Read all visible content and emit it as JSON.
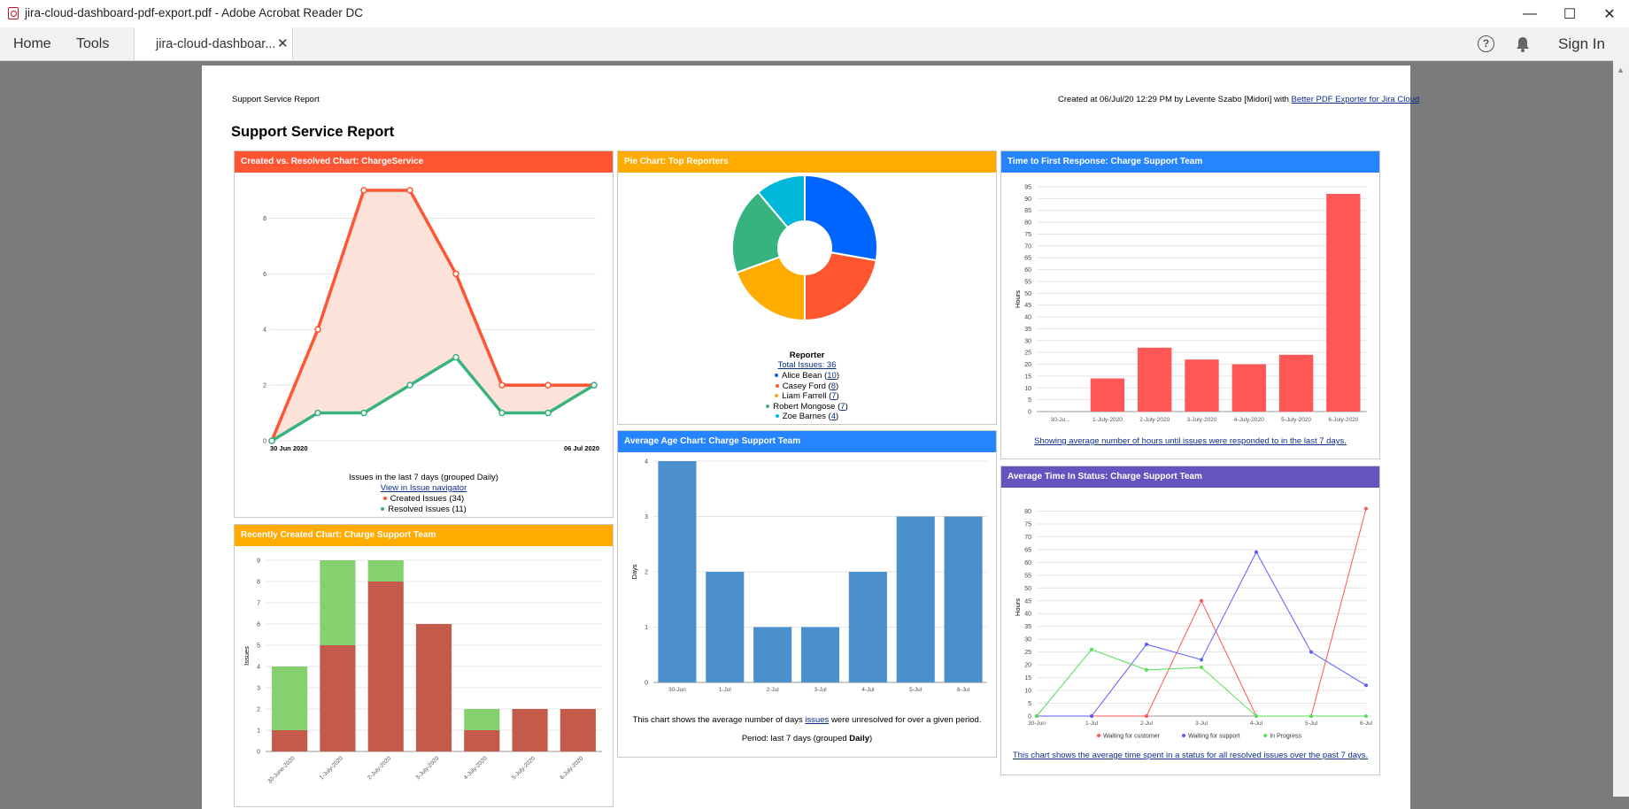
{
  "window": {
    "title": "jira-cloud-dashboard-pdf-export.pdf - Adobe Acrobat Reader DC",
    "minimize": "—",
    "maximize": "☐",
    "close": "✕"
  },
  "menubar": {
    "home": "Home",
    "tools": "Tools",
    "tab_label": "jira-cloud-dashboar...",
    "tab_close": "✕",
    "help": "?",
    "sign_in": "Sign In"
  },
  "page": {
    "header_left": "Support Service Report",
    "header_right_prefix": "Created at 06/Jul/20 12:29 PM by Levente Szabo [Midori] with ",
    "header_right_link": "Better PDF Exporter for Jira Cloud",
    "title": "Support Service Report"
  },
  "colors": {
    "red": "#ff5533",
    "orange": "#ffab00",
    "blue": "#2684ff",
    "purple": "#6554c0",
    "green": "#36b37e",
    "bar_red": "#ff5656",
    "bar_blue": "#4a90cc",
    "stack_red": "#c35a4a",
    "stack_green": "#85d170"
  },
  "panels": {
    "created_resolved": {
      "title": "Created vs. Resolved Chart: ChargeService",
      "caption": "Issues in the last 7 days (grouped Daily)",
      "link": "View in Issue navigator",
      "legend": [
        {
          "label": "Created Issues (34)",
          "color": "#ff5533"
        },
        {
          "label": "Resolved Issues (11)",
          "color": "#36b37e"
        }
      ]
    },
    "pie": {
      "title": "Pie Chart: Top Reporters",
      "legend_title": "Reporter",
      "total_label": "Total Issues: 36",
      "entries": [
        {
          "name": "Alice Bean",
          "count": "10",
          "color": "#0065ff"
        },
        {
          "name": "Casey Ford",
          "count": "8",
          "color": "#ff5630"
        },
        {
          "name": "Liam Farrell",
          "count": "7",
          "color": "#ffab00"
        },
        {
          "name": "Robert Mongose",
          "count": "7",
          "color": "#36b37e"
        },
        {
          "name": "Zoe Barnes",
          "count": "4",
          "color": "#00b8d9"
        }
      ]
    },
    "first_response": {
      "title": "Time to First Response: Charge Support Team",
      "caption": "Showing average number of hours until issues were responded to in the last 7 days."
    },
    "recent_created": {
      "title": "Recently Created Chart: Charge Support Team"
    },
    "avg_age": {
      "title": "Average Age Chart: Charge Support Team",
      "caption_prefix": "This chart shows the average number of days ",
      "caption_link": "issues",
      "caption_suffix": " were unresolved for over a given period.",
      "period_prefix": "Period: last 7 days (grouped ",
      "period_bold": "Daily",
      "period_suffix": ")"
    },
    "time_in_status": {
      "title": "Average Time In Status: Charge Support Team",
      "caption": "This chart shows the average time spent in a status for all resolved issues over the past 7 days."
    }
  },
  "chart_data": [
    {
      "type": "area",
      "title": "Created vs. Resolved Chart: ChargeService",
      "x": [
        "30 Jun 2020",
        "",
        "",
        "",
        "",
        "",
        "",
        "06 Jul 2020"
      ],
      "x_tick_labels": [
        "30 Jun 2020",
        "06 Jul 2020"
      ],
      "ylim": [
        0,
        9
      ],
      "yticks": [
        0,
        2,
        4,
        6,
        8
      ],
      "series": [
        {
          "name": "Created Issues (34)",
          "values": [
            0,
            4,
            9,
            9,
            6,
            2,
            2,
            2
          ]
        },
        {
          "name": "Resolved Issues (11)",
          "values": [
            0,
            1,
            1,
            2,
            3,
            1,
            1,
            2
          ]
        }
      ]
    },
    {
      "type": "pie",
      "title": "Pie Chart: Top Reporters",
      "categories": [
        "Alice Bean",
        "Casey Ford",
        "Liam Farrell",
        "Robert Mongose",
        "Zoe Barnes"
      ],
      "values": [
        10,
        8,
        7,
        7,
        4
      ]
    },
    {
      "type": "bar",
      "title": "Time to First Response: Charge Support Team",
      "categories": [
        "30-Ju...",
        "1-July-2020",
        "2-July-2020",
        "3-July-2020",
        "4-July-2020",
        "5-July-2020",
        "6-July-2020"
      ],
      "values": [
        0,
        14,
        27,
        22,
        20,
        24,
        92
      ],
      "ylabel": "Hours",
      "ylim": [
        0,
        95
      ],
      "yticks": [
        0,
        5,
        10,
        15,
        20,
        25,
        30,
        35,
        40,
        45,
        50,
        55,
        60,
        65,
        70,
        75,
        80,
        85,
        90,
        95
      ]
    },
    {
      "type": "bar",
      "title": "Recently Created Chart: Charge Support Team",
      "stacked": true,
      "categories": [
        "30-June-2020",
        "1-July-2020",
        "2-July-2020",
        "3-July-2020",
        "4-July-2020",
        "5-July-2020",
        "6-July-2020"
      ],
      "series": [
        {
          "values": [
            1,
            5,
            8,
            6,
            1,
            2,
            2
          ]
        },
        {
          "values": [
            3,
            4,
            1,
            0,
            1,
            0,
            0
          ]
        }
      ],
      "ylabel": "Issues",
      "ylim": [
        0,
        9
      ],
      "yticks": [
        0,
        1,
        2,
        3,
        4,
        5,
        6,
        7,
        8,
        9
      ]
    },
    {
      "type": "bar",
      "title": "Average Age Chart: Charge Support Team",
      "categories": [
        "30-Jun",
        "1-Jul",
        "2-Jul",
        "3-Jul",
        "4-Jul",
        "5-Jul",
        "6-Jul"
      ],
      "values": [
        4,
        2,
        1,
        1,
        2,
        3,
        3
      ],
      "ylabel": "Days",
      "ylim": [
        0,
        4
      ],
      "yticks": [
        0,
        1,
        2,
        3,
        4
      ]
    },
    {
      "type": "line",
      "title": "Average Time In Status: Charge Support Team",
      "x": [
        "30-Jun",
        "1-Jul",
        "2-Jul",
        "3-Jul",
        "4-Jul",
        "5-Jul",
        "6-Jul"
      ],
      "ylabel": "Hours",
      "ylim": [
        0,
        85
      ],
      "yticks": [
        0,
        5,
        10,
        15,
        20,
        25,
        30,
        35,
        40,
        45,
        50,
        55,
        60,
        65,
        70,
        75,
        80
      ],
      "series": [
        {
          "name": "Waiting for customer",
          "values": [
            0,
            0,
            0,
            45,
            0,
            0,
            81
          ],
          "color": "#ff5656"
        },
        {
          "name": "Waiting for support",
          "values": [
            0,
            0,
            28,
            22,
            64,
            25,
            12
          ],
          "color": "#5b5bff"
        },
        {
          "name": "In Progress",
          "values": [
            0,
            26,
            18,
            19,
            0,
            0,
            0
          ],
          "color": "#55e055"
        }
      ]
    }
  ]
}
